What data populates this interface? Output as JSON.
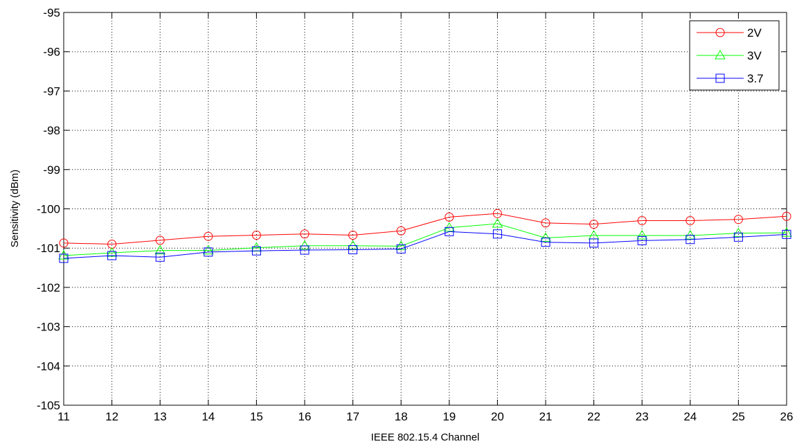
{
  "chart_data": {
    "type": "line",
    "xlabel": "IEEE 802.15.4 Channel",
    "ylabel": "Sensitivity (dBm)",
    "xlim": [
      11,
      26
    ],
    "ylim": [
      -105,
      -95
    ],
    "x_ticks": [
      11,
      12,
      13,
      14,
      15,
      16,
      17,
      18,
      19,
      20,
      21,
      22,
      23,
      24,
      25,
      26
    ],
    "y_ticks": [
      -105,
      -104,
      -103,
      -102,
      -101,
      -100,
      -99,
      -98,
      -97,
      -96,
      -95
    ],
    "grid": true,
    "legend_position": "top-right",
    "x": [
      11,
      12,
      13,
      14,
      15,
      16,
      17,
      18,
      19,
      20,
      21,
      22,
      23,
      24,
      25,
      26
    ],
    "series": [
      {
        "name": "2V",
        "color": "#ff0000",
        "marker": "circle",
        "values": [
          -100.87,
          -100.9,
          -100.8,
          -100.7,
          -100.67,
          -100.64,
          -100.67,
          -100.56,
          -100.21,
          -100.12,
          -100.36,
          -100.39,
          -100.3,
          -100.3,
          -100.27,
          -100.19
        ]
      },
      {
        "name": "3V",
        "color": "#00ff00",
        "marker": "triangle",
        "values": [
          -101.19,
          -101.12,
          -101.06,
          -101.06,
          -100.99,
          -100.94,
          -100.94,
          -100.95,
          -100.48,
          -100.38,
          -100.74,
          -100.68,
          -100.68,
          -100.68,
          -100.62,
          -100.61
        ]
      },
      {
        "name": "3.7",
        "color": "#0000ff",
        "marker": "square",
        "values": [
          -101.26,
          -101.19,
          -101.23,
          -101.1,
          -101.07,
          -101.05,
          -101.04,
          -101.02,
          -100.58,
          -100.64,
          -100.85,
          -100.87,
          -100.81,
          -100.78,
          -100.72,
          -100.65
        ]
      }
    ]
  }
}
